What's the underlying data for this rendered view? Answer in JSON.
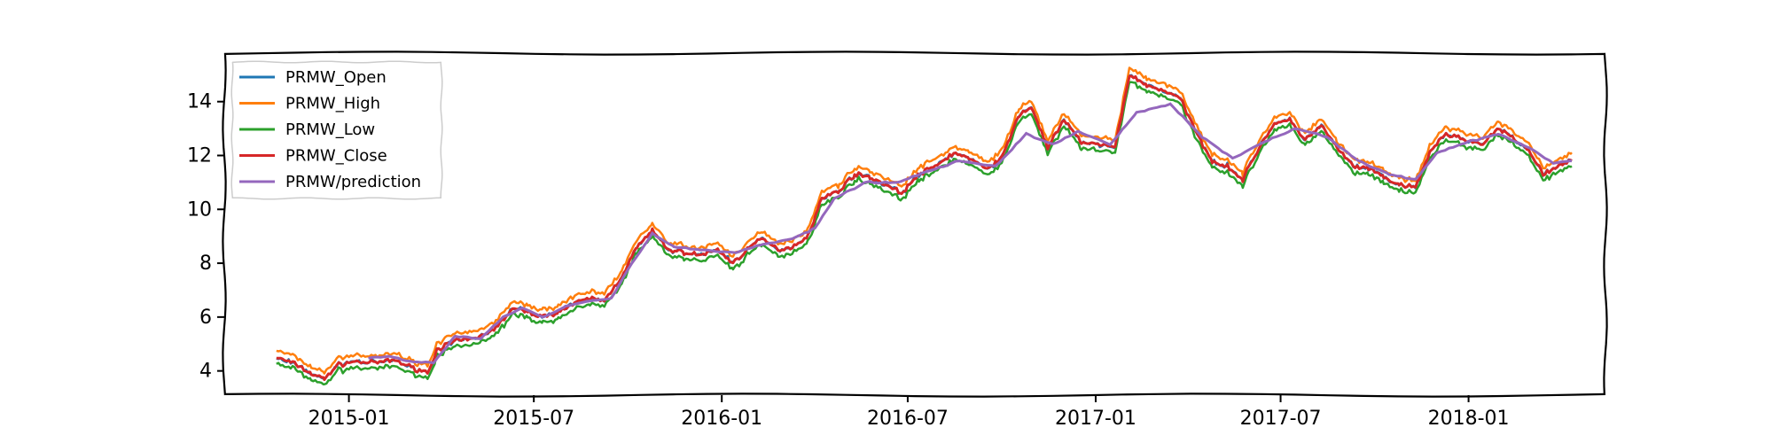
{
  "chart_data": {
    "type": "line",
    "title": "",
    "xlabel": "",
    "ylabel": "",
    "xlim": [
      "2014-09-01",
      "2018-05-15"
    ],
    "ylim": [
      3.1,
      15.8
    ],
    "x_ticks": [
      "2015-01",
      "2015-07",
      "2016-01",
      "2016-07",
      "2017-01",
      "2017-07",
      "2018-01"
    ],
    "y_ticks": [
      4,
      6,
      8,
      10,
      12,
      14
    ],
    "grid": false,
    "legend_position": "top-left",
    "colors": {
      "PRMW_Open": "#1f77b4",
      "PRMW_High": "#ff7f0e",
      "PRMW_Low": "#2ca02c",
      "PRMW_Close": "#d62728",
      "PRMW/prediction": "#9467bd"
    },
    "series": [
      {
        "name": "PRMW_Close",
        "points": [
          [
            "2014-10-22",
            4.5
          ],
          [
            "2014-11-10",
            4.25
          ],
          [
            "2014-11-25",
            3.9
          ],
          [
            "2014-12-08",
            3.7
          ],
          [
            "2014-12-20",
            4.2
          ],
          [
            "2015-01-05",
            4.35
          ],
          [
            "2015-01-25",
            4.3
          ],
          [
            "2015-02-15",
            4.4
          ],
          [
            "2015-03-05",
            4.1
          ],
          [
            "2015-03-20",
            3.95
          ],
          [
            "2015-03-28",
            4.8
          ],
          [
            "2015-04-15",
            5.1
          ],
          [
            "2015-05-05",
            5.2
          ],
          [
            "2015-05-25",
            5.6
          ],
          [
            "2015-06-10",
            6.3
          ],
          [
            "2015-06-25",
            6.2
          ],
          [
            "2015-07-10",
            6.0
          ],
          [
            "2015-07-25",
            6.2
          ],
          [
            "2015-08-10",
            6.5
          ],
          [
            "2015-08-25",
            6.7
          ],
          [
            "2015-09-08",
            6.6
          ],
          [
            "2015-09-25",
            7.5
          ],
          [
            "2015-10-10",
            8.6
          ],
          [
            "2015-10-25",
            9.2
          ],
          [
            "2015-11-10",
            8.5
          ],
          [
            "2015-11-25",
            8.4
          ],
          [
            "2015-12-10",
            8.3
          ],
          [
            "2015-12-28",
            8.5
          ],
          [
            "2016-01-12",
            8.0
          ],
          [
            "2016-01-28",
            8.6
          ],
          [
            "2016-02-10",
            8.9
          ],
          [
            "2016-02-25",
            8.5
          ],
          [
            "2016-03-10",
            8.6
          ],
          [
            "2016-03-25",
            9.0
          ],
          [
            "2016-04-08",
            10.4
          ],
          [
            "2016-04-25",
            10.7
          ],
          [
            "2016-05-10",
            11.3
          ],
          [
            "2016-05-25",
            11.2
          ],
          [
            "2016-06-10",
            10.9
          ],
          [
            "2016-06-25",
            10.6
          ],
          [
            "2016-07-12",
            11.3
          ],
          [
            "2016-07-28",
            11.6
          ],
          [
            "2016-08-15",
            12.1
          ],
          [
            "2016-08-30",
            11.9
          ],
          [
            "2016-09-15",
            11.5
          ],
          [
            "2016-10-01",
            11.9
          ],
          [
            "2016-10-18",
            13.5
          ],
          [
            "2016-10-30",
            13.8
          ],
          [
            "2016-11-15",
            12.3
          ],
          [
            "2016-12-01",
            13.3
          ],
          [
            "2016-12-18",
            12.5
          ],
          [
            "2017-01-05",
            12.4
          ],
          [
            "2017-01-20",
            12.3
          ],
          [
            "2017-02-03",
            15.0
          ],
          [
            "2017-02-20",
            14.6
          ],
          [
            "2017-03-10",
            14.4
          ],
          [
            "2017-03-25",
            14.1
          ],
          [
            "2017-04-10",
            12.8
          ],
          [
            "2017-04-25",
            11.8
          ],
          [
            "2017-05-10",
            11.6
          ],
          [
            "2017-05-25",
            11.1
          ],
          [
            "2017-06-10",
            12.3
          ],
          [
            "2017-06-25",
            13.2
          ],
          [
            "2017-07-10",
            13.3
          ],
          [
            "2017-07-25",
            12.6
          ],
          [
            "2017-08-10",
            13.1
          ],
          [
            "2017-08-25",
            12.3
          ],
          [
            "2017-09-10",
            11.6
          ],
          [
            "2017-09-25",
            11.5
          ],
          [
            "2017-10-10",
            11.2
          ],
          [
            "2017-10-25",
            10.9
          ],
          [
            "2017-11-10",
            10.8
          ],
          [
            "2017-11-25",
            12.2
          ],
          [
            "2017-12-10",
            12.8
          ],
          [
            "2017-12-28",
            12.6
          ],
          [
            "2018-01-15",
            12.4
          ],
          [
            "2018-01-30",
            13.0
          ],
          [
            "2018-02-15",
            12.6
          ],
          [
            "2018-03-01",
            12.2
          ],
          [
            "2018-03-15",
            11.3
          ],
          [
            "2018-03-30",
            11.6
          ],
          [
            "2018-04-12",
            11.8
          ]
        ]
      },
      {
        "name": "PRMW/prediction",
        "points": [
          [
            "2015-01-20",
            4.5
          ],
          [
            "2015-02-10",
            4.55
          ],
          [
            "2015-03-01",
            4.35
          ],
          [
            "2015-03-25",
            4.3
          ],
          [
            "2015-04-15",
            5.3
          ],
          [
            "2015-05-10",
            5.2
          ],
          [
            "2015-06-01",
            6.0
          ],
          [
            "2015-06-20",
            6.35
          ],
          [
            "2015-07-10",
            6.0
          ],
          [
            "2015-08-01",
            6.4
          ],
          [
            "2015-08-25",
            6.6
          ],
          [
            "2015-09-15",
            6.7
          ],
          [
            "2015-10-05",
            8.0
          ],
          [
            "2015-10-25",
            9.1
          ],
          [
            "2015-11-15",
            8.6
          ],
          [
            "2015-12-10",
            8.5
          ],
          [
            "2016-01-15",
            8.4
          ],
          [
            "2016-02-10",
            8.7
          ],
          [
            "2016-03-10",
            8.9
          ],
          [
            "2016-04-01",
            9.3
          ],
          [
            "2016-04-20",
            10.4
          ],
          [
            "2016-05-20",
            11.0
          ],
          [
            "2016-06-20",
            11.0
          ],
          [
            "2016-07-20",
            11.4
          ],
          [
            "2016-08-20",
            11.8
          ],
          [
            "2016-09-25",
            11.6
          ],
          [
            "2016-10-25",
            12.8
          ],
          [
            "2016-11-20",
            12.4
          ],
          [
            "2016-12-15",
            12.9
          ],
          [
            "2017-01-15",
            12.4
          ],
          [
            "2017-02-10",
            13.6
          ],
          [
            "2017-03-15",
            13.9
          ],
          [
            "2017-04-15",
            12.7
          ],
          [
            "2017-05-15",
            11.9
          ],
          [
            "2017-06-15",
            12.5
          ],
          [
            "2017-07-15",
            13.0
          ],
          [
            "2017-08-15",
            12.7
          ],
          [
            "2017-09-15",
            11.8
          ],
          [
            "2017-10-15",
            11.3
          ],
          [
            "2017-11-10",
            11.1
          ],
          [
            "2017-12-01",
            12.1
          ],
          [
            "2018-01-01",
            12.5
          ],
          [
            "2018-01-30",
            12.8
          ],
          [
            "2018-03-01",
            12.3
          ],
          [
            "2018-03-25",
            11.7
          ],
          [
            "2018-04-12",
            11.8
          ]
        ]
      }
    ],
    "derived_series_offsets": {
      "PRMW_Open": 0.0,
      "PRMW_High": 0.25,
      "PRMW_Low": -0.22
    }
  },
  "legend": {
    "items": [
      "PRMW_Open",
      "PRMW_High",
      "PRMW_Low",
      "PRMW_Close",
      "PRMW/prediction"
    ]
  }
}
